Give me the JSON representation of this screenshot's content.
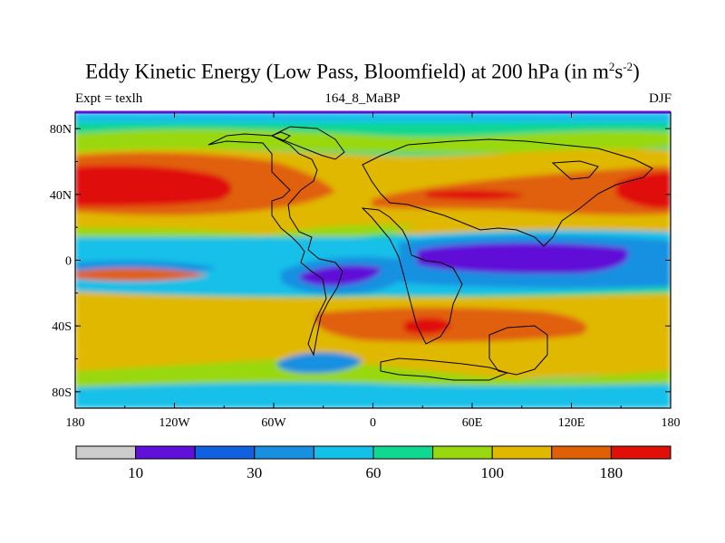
{
  "title": {
    "main": "Eddy Kinetic Energy (Low Pass, Bloomfield) at 200 hPa (in m",
    "sup1": "2",
    "mid": "s",
    "sup2": "-2",
    "end": ")"
  },
  "subtitles": {
    "left": "Expt = texlh",
    "center": "164_8_MaBP",
    "right": "DJF"
  },
  "colors": {
    "levels": [
      "#cccccc",
      "#6010d8",
      "#1060e0",
      "#1890e0",
      "#12c0e8",
      "#10d890",
      "#98d810",
      "#e0b800",
      "#e06008",
      "#e01008"
    ]
  },
  "chart_data": {
    "type": "heatmap",
    "title": "Eddy Kinetic Energy (Low Pass, Bloomfield) at 200 hPa (in m^2 s^-2)",
    "variable": "eddy kinetic energy",
    "units": "m2 s-2",
    "season": "DJF",
    "experiment": "texlh",
    "xlim": [
      -180,
      180
    ],
    "ylim": [
      -90,
      90
    ],
    "x_ticks": [
      -180,
      -120,
      -60,
      0,
      60,
      120,
      180
    ],
    "x_tick_labels": [
      "180",
      "120W",
      "60W",
      "0",
      "60E",
      "120E",
      "180"
    ],
    "y_ticks": [
      80,
      40,
      0,
      -40,
      -80
    ],
    "y_tick_labels": [
      "80N",
      "40N",
      "0",
      "40S",
      "80S"
    ],
    "colorbar_labels": [
      "10",
      "30",
      "60",
      "100",
      "180"
    ],
    "field_features": [
      {
        "region": "NH storm track, central Pacific",
        "lon_range": [
          -180,
          -140
        ],
        "lat_range": [
          30,
          52
        ],
        "value": ">180"
      },
      {
        "region": "NH storm track, north Atlantic",
        "lon_range": [
          -110,
          -45
        ],
        "lat_range": [
          28,
          56
        ],
        "value": "150-180"
      },
      {
        "region": "NH storm track, Eurasia",
        "lon_range": [
          20,
          180
        ],
        "lat_range": [
          30,
          45
        ],
        "value": "150-180"
      },
      {
        "region": "Tropical minimum, Indian Ocean-W Pacific",
        "lon_range": [
          40,
          150
        ],
        "lat_range": [
          -10,
          10
        ],
        "value": "<10"
      },
      {
        "region": "Tropical minimum, south Atlantic",
        "lon_range": [
          -40,
          20
        ],
        "lat_range": [
          -25,
          -5
        ],
        "value": "<10"
      },
      {
        "region": "SH storm track",
        "lon_range": [
          -180,
          180
        ],
        "lat_range": [
          -55,
          -30
        ],
        "value": "100-180"
      },
      {
        "region": "SH storm track max",
        "lon_range": [
          30,
          50
        ],
        "lat_range": [
          -45,
          -35
        ],
        "value": ">180"
      }
    ]
  }
}
